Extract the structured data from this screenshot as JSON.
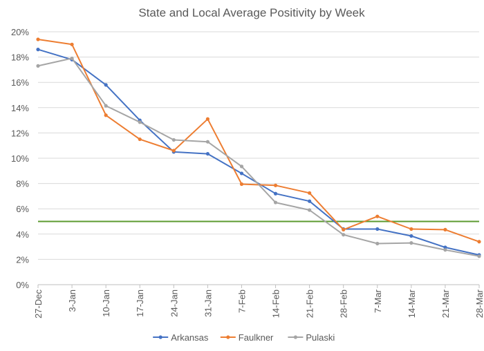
{
  "chart_data": {
    "type": "line",
    "title": "State and Local Average Positivity by Week",
    "xlabel": "",
    "ylabel": "",
    "categories": [
      "27-Dec",
      "3-Jan",
      "10-Jan",
      "17-Jan",
      "24-Jan",
      "31-Jan",
      "7-Feb",
      "14-Feb",
      "21-Feb",
      "28-Feb",
      "7-Mar",
      "14-Mar",
      "21-Mar",
      "28-Mar"
    ],
    "ylim": [
      0,
      20
    ],
    "yticks": [
      0,
      2,
      4,
      6,
      8,
      10,
      12,
      14,
      16,
      18,
      20
    ],
    "ytick_labels": [
      "0%",
      "2%",
      "4%",
      "6%",
      "8%",
      "10%",
      "12%",
      "14%",
      "16%",
      "18%",
      "20%"
    ],
    "grid": true,
    "legend_position": "bottom",
    "reference_line": {
      "value": 5,
      "color": "#5b9a2f"
    },
    "series": [
      {
        "name": "Arkansas",
        "color": "#4472c4",
        "values": [
          18.6,
          17.8,
          15.8,
          13.0,
          10.5,
          10.35,
          8.8,
          7.2,
          6.6,
          4.4,
          4.4,
          3.85,
          2.95,
          2.35
        ]
      },
      {
        "name": "Faulkner",
        "color": "#ed7d31",
        "values": [
          19.4,
          19.0,
          13.4,
          11.5,
          10.6,
          13.1,
          7.95,
          7.85,
          7.25,
          4.35,
          5.4,
          4.4,
          4.35,
          3.4
        ]
      },
      {
        "name": "Pulaski",
        "color": "#a5a5a5",
        "values": [
          17.3,
          17.9,
          14.15,
          12.85,
          11.45,
          11.3,
          9.35,
          6.5,
          5.9,
          3.95,
          3.25,
          3.3,
          2.75,
          2.25
        ]
      }
    ]
  }
}
